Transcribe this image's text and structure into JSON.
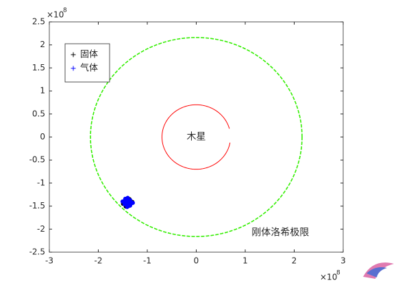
{
  "chart_data": {
    "type": "scatter",
    "xlim": [
      -3,
      3
    ],
    "ylim": [
      -2.5,
      2.5
    ],
    "xticks": [
      -3,
      -2,
      -1,
      0,
      1,
      2,
      3
    ],
    "yticks": [
      2.5,
      2,
      1.5,
      1,
      0.5,
      0,
      -0.5,
      -1,
      -1.5,
      -2,
      -2.5
    ],
    "x_scale_label": "×10",
    "x_scale_exponent": "8",
    "y_scale_label": "×10",
    "y_scale_exponent": "8",
    "legend_position": "northwest",
    "series": [
      {
        "name": "固体",
        "color": "#000000",
        "x": [
          -1.42,
          -1.38,
          -1.4,
          -1.36,
          -1.44
        ],
        "y": [
          -1.42,
          -1.44,
          -1.4,
          -1.41,
          -1.45
        ]
      },
      {
        "name": "气体",
        "color": "#0000ff",
        "x": [
          -1.45,
          -1.4,
          -1.35,
          -1.41,
          -1.38
        ],
        "y": [
          -1.4,
          -1.38,
          -1.43,
          -1.46,
          -1.44
        ]
      }
    ],
    "circles": [
      {
        "color": "#ff0000",
        "cx": 0,
        "cy": 0,
        "radius": 0.7,
        "start_angle": 15,
        "end_angle": 350,
        "dashed": false
      },
      {
        "color": "#33ee00",
        "cx": 0,
        "cy": 0,
        "radius": 2.16,
        "start_angle": 0,
        "end_angle": 360,
        "dashed": true
      }
    ],
    "annotations": [
      {
        "text": "木星",
        "x": 0,
        "y": 0,
        "color": "#ff0000",
        "anchor": "middle"
      },
      {
        "text": "刚体洛希极限",
        "x": 1.13,
        "y": -2.08,
        "color": "#3b7a1a",
        "anchor": "start"
      }
    ]
  }
}
